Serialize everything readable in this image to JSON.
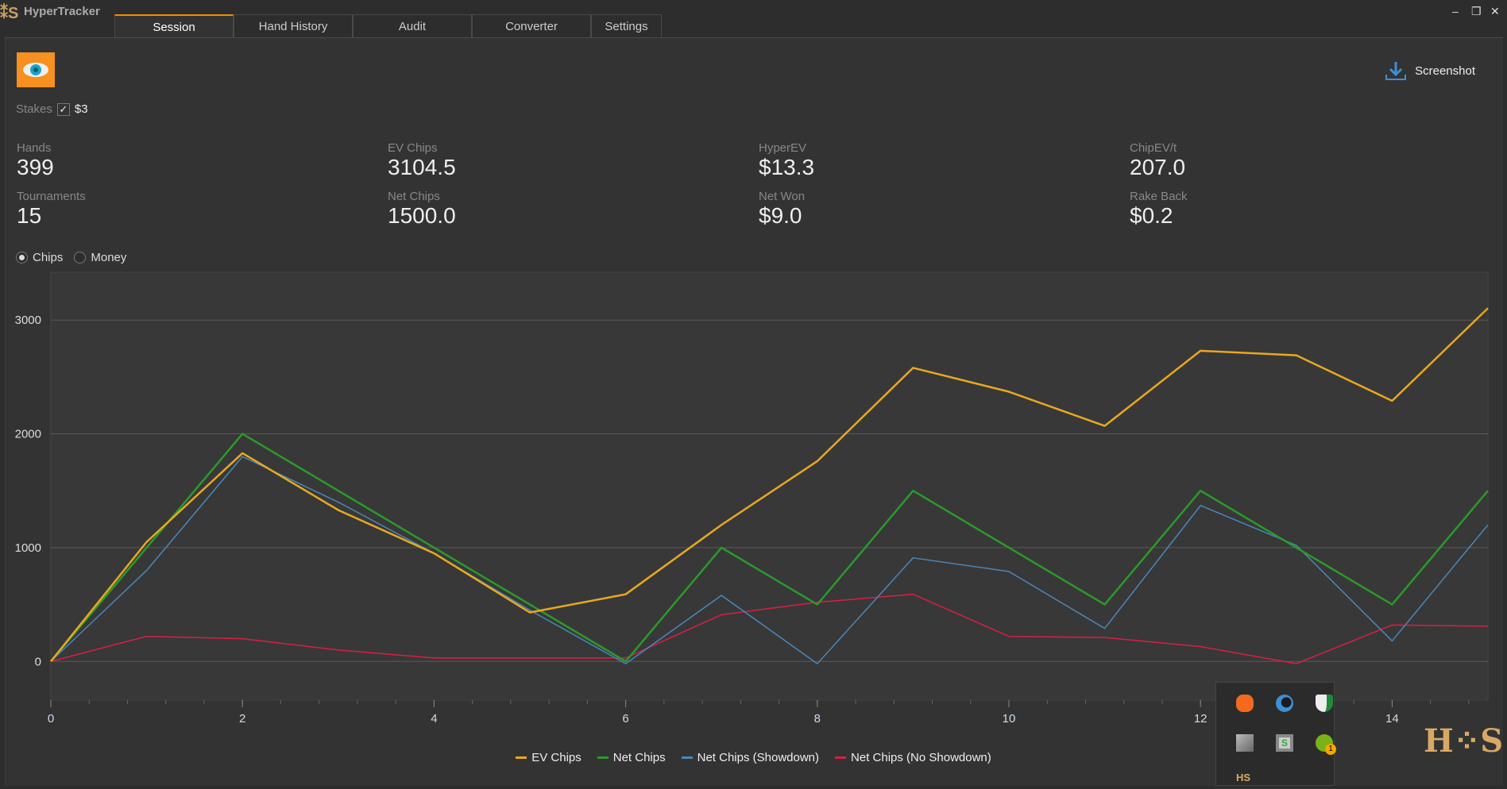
{
  "app": {
    "title": "HyperTracker",
    "logo": "HS"
  },
  "tabs": [
    {
      "label": "Session"
    },
    {
      "label": "Hand History"
    },
    {
      "label": "Audit"
    },
    {
      "label": "Converter"
    },
    {
      "label": "Settings"
    }
  ],
  "window_controls": {
    "minimize": "–",
    "restore": "❐",
    "close": "✕"
  },
  "stakes": {
    "label": "Stakes",
    "value": "$3",
    "checked": true
  },
  "screenshot_label": "Screenshot",
  "stats": [
    {
      "label": "Hands",
      "value": "399"
    },
    {
      "label": "EV Chips",
      "value": "3104.5"
    },
    {
      "label": "HyperEV",
      "value": "$13.3"
    },
    {
      "label": "ChipEV/t",
      "value": "207.0"
    },
    {
      "label": "Tournaments",
      "value": "15"
    },
    {
      "label": "Net Chips",
      "value": "1500.0"
    },
    {
      "label": "Net Won",
      "value": "$9.0"
    },
    {
      "label": "Rake Back",
      "value": "$0.2"
    }
  ],
  "mode": {
    "chips": "Chips",
    "money": "Money",
    "selected": "Chips"
  },
  "chart_data": {
    "type": "line",
    "x": [
      0,
      1,
      2,
      3,
      4,
      5,
      6,
      7,
      8,
      9,
      10,
      11,
      12,
      13,
      14,
      15
    ],
    "xticks": [
      "0",
      "2",
      "4",
      "6",
      "8",
      "10",
      "12",
      "14"
    ],
    "yticks": [
      "0",
      "1000",
      "2000",
      "3000"
    ],
    "ylim": [
      -340,
      3420
    ],
    "xlim": [
      0,
      15
    ],
    "series": [
      {
        "name": "EV Chips",
        "color": "#e8a820",
        "width": 2.5,
        "values": [
          0,
          1050,
          1830,
          1330,
          950,
          430,
          590,
          1200,
          1760,
          2580,
          2370,
          2070,
          2730,
          2690,
          2290,
          3104.5
        ]
      },
      {
        "name": "Net Chips",
        "color": "#2a9a2a",
        "width": 2.5,
        "values": [
          0,
          1000,
          2000,
          1500,
          1000,
          500,
          0,
          1000,
          500,
          1500,
          1000,
          500,
          1500,
          1000,
          500,
          1500
        ]
      },
      {
        "name": "Net Chips (Showdown)",
        "color": "#4a86b8",
        "width": 1.5,
        "values": [
          0,
          800,
          1800,
          1400,
          950,
          450,
          -20,
          580,
          -20,
          910,
          790,
          290,
          1370,
          1020,
          180,
          1200
        ]
      },
      {
        "name": "Net Chips (No Showdown)",
        "color": "#d81f45",
        "width": 1.5,
        "values": [
          0,
          220,
          200,
          100,
          30,
          30,
          30,
          410,
          520,
          590,
          220,
          210,
          130,
          -20,
          320,
          310
        ]
      }
    ]
  },
  "tray": {
    "icons": [
      "avast-icon",
      "browser-icon",
      "defender-icon",
      "app-icon",
      "sync-icon",
      "notification-icon",
      "hs-icon"
    ],
    "badge": "1"
  }
}
